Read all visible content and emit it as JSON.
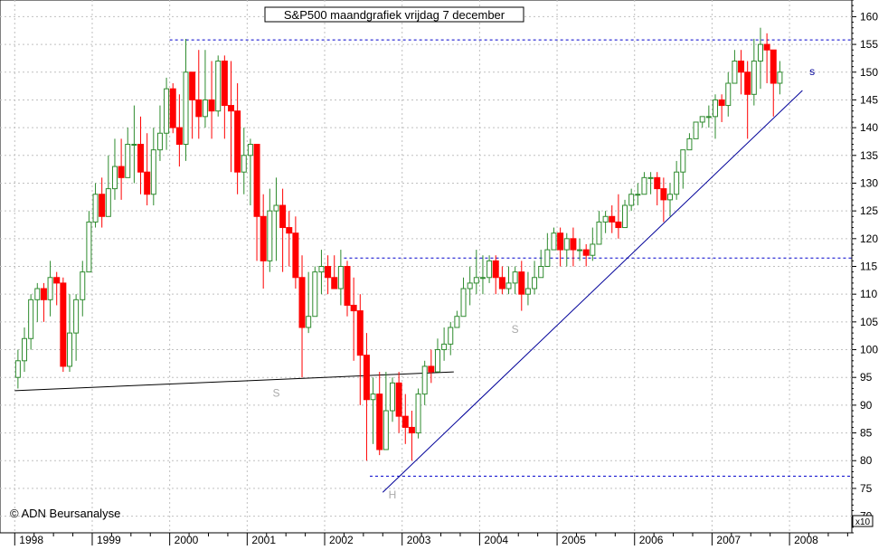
{
  "chart_data": {
    "type": "candlestick",
    "title": "S&P500 maandgrafiek vrijdag 7 december",
    "watermark": "© ADN Beursanalyse",
    "scale_label": "x10",
    "y_axis": {
      "side": "right",
      "ylim": [
        67,
        163
      ],
      "ticks": [
        70,
        75,
        80,
        85,
        90,
        95,
        100,
        105,
        110,
        115,
        120,
        125,
        130,
        135,
        140,
        145,
        150,
        155,
        160
      ]
    },
    "x_axis": {
      "years": [
        "1998",
        "1999",
        "2000",
        "2001",
        "2002",
        "2003",
        "2004",
        "2005",
        "2006",
        "2007",
        "2008"
      ]
    },
    "grid": true,
    "colors": {
      "up": "#2e8b2e",
      "down": "#ff0000",
      "background": "#ffffff",
      "grid": "#c0c0c0",
      "resistance": "#0000cc",
      "trend": "#000099",
      "neckline": "#000000",
      "label": "#aaaaaa"
    },
    "series": {
      "start": "1998-01",
      "closes": [
        98,
        102,
        109,
        111,
        109,
        113,
        112,
        97,
        103,
        109,
        114,
        123,
        128,
        124,
        129,
        133,
        131,
        137,
        137,
        132,
        128,
        136,
        139,
        147,
        140,
        137,
        150,
        145,
        142,
        145,
        143,
        152,
        144,
        143,
        132,
        135,
        137,
        124,
        116,
        125,
        126,
        122,
        121,
        113,
        104,
        106,
        114,
        115,
        113,
        111,
        115,
        108,
        107,
        99,
        91,
        92,
        82,
        89,
        94,
        88,
        86,
        85,
        92,
        97,
        96,
        100,
        101,
        104,
        106,
        111,
        112,
        113,
        113,
        116,
        113,
        111,
        112,
        114,
        110,
        111,
        113,
        115,
        118,
        121,
        118,
        120,
        118,
        118,
        117,
        119,
        123,
        124,
        123,
        122,
        126,
        128,
        128,
        131,
        131,
        129,
        127,
        128,
        132,
        136,
        138,
        141,
        142,
        142,
        145,
        144,
        148,
        152,
        150,
        146,
        152,
        155,
        154,
        148,
        150
      ],
      "highs": [
        100,
        104,
        110,
        112,
        112,
        116,
        114,
        113,
        110,
        110,
        116,
        125,
        130,
        131,
        135,
        138,
        138,
        140,
        144,
        142,
        139,
        140,
        144,
        149,
        148,
        146,
        156,
        149,
        154,
        154,
        152,
        153,
        153,
        152,
        148,
        140,
        138,
        137,
        128,
        129,
        131,
        129,
        125,
        124,
        117,
        114,
        115,
        118,
        117,
        117,
        118,
        116,
        113,
        110,
        103,
        95,
        96,
        96,
        95,
        96,
        92,
        89,
        93,
        98,
        100,
        102,
        104,
        105,
        107,
        113,
        115,
        118,
        117,
        117,
        117,
        115,
        115,
        115,
        116,
        114,
        116,
        118,
        121,
        122,
        122,
        121,
        122,
        120,
        119,
        122,
        125,
        125,
        126,
        128,
        127,
        129,
        130,
        132,
        132,
        132,
        131,
        130,
        134,
        136,
        139,
        141,
        142,
        144,
        146,
        146,
        150,
        154,
        154,
        152,
        156,
        158,
        157,
        154,
        152
      ],
      "lows": [
        93,
        96,
        100,
        105,
        105,
        106,
        108,
        96,
        96,
        98,
        106,
        114,
        122,
        122,
        124,
        127,
        127,
        132,
        130,
        128,
        126,
        126,
        134,
        136,
        139,
        133,
        134,
        138,
        138,
        140,
        138,
        142,
        138,
        132,
        128,
        128,
        126,
        116,
        111,
        114,
        116,
        114,
        115,
        111,
        95,
        103,
        106,
        110,
        110,
        111,
        108,
        106,
        98,
        90,
        80,
        83,
        81,
        84,
        87,
        85,
        83,
        80,
        84,
        90,
        94,
        96,
        98,
        99,
        104,
        106,
        108,
        110,
        110,
        112,
        110,
        110,
        110,
        110,
        107,
        108,
        110,
        114,
        115,
        118,
        115,
        115,
        115,
        116,
        115,
        116,
        120,
        121,
        121,
        120,
        122,
        125,
        126,
        128,
        128,
        126,
        123,
        124,
        127,
        129,
        136,
        138,
        140,
        140,
        138,
        141,
        142,
        148,
        146,
        138,
        144,
        147,
        148,
        142,
        146
      ]
    },
    "lines": [
      {
        "name": "resistance-top",
        "style": "dotted",
        "level": 155.8,
        "from": "2000-01",
        "to": "2008-12"
      },
      {
        "name": "resistance-mid",
        "style": "dotted",
        "level": 116.5,
        "from": "2002-04",
        "to": "2008-12"
      },
      {
        "name": "support-bottom",
        "style": "dotted",
        "level": 77.2,
        "from": "2002-08",
        "to": "2008-12"
      },
      {
        "name": "neckline",
        "style": "solid",
        "from": [
          "1998-01",
          92.6
        ],
        "to": [
          "2003-09",
          96.0
        ]
      },
      {
        "name": "trendline",
        "style": "solid",
        "from": [
          "2002-10",
          74.3
        ],
        "to": [
          "2008-03",
          146.7
        ]
      }
    ],
    "annotations": [
      {
        "text": "S",
        "at": [
          "2001-05",
          91.5
        ],
        "color": "label"
      },
      {
        "text": "H",
        "at": [
          "2002-11",
          73.2
        ],
        "color": "label"
      },
      {
        "text": "S",
        "at": [
          "2004-06",
          103.0
        ],
        "color": "label"
      },
      {
        "text": "s",
        "at": [
          "2008-04",
          149.5
        ],
        "color": "trend"
      }
    ]
  }
}
